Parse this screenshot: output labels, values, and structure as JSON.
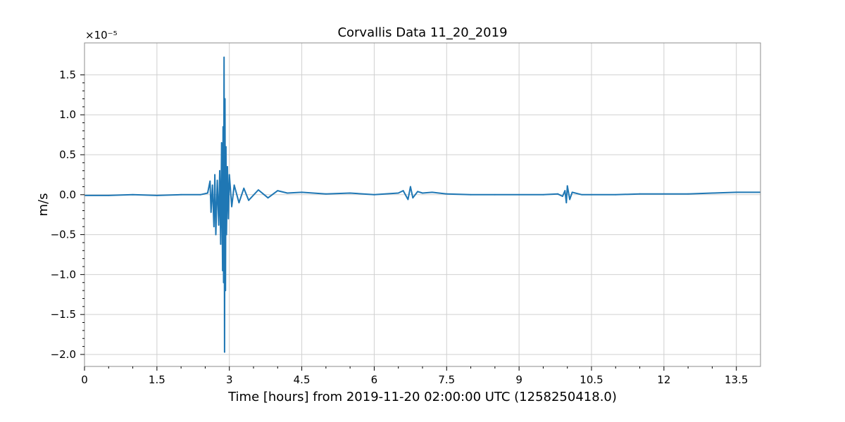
{
  "chart_data": {
    "type": "line",
    "title": "Corvallis Data 11_20_2019",
    "xlabel": "Time [hours] from 2019-11-20 02:00:00 UTC (1258250418.0)",
    "ylabel": "m/s",
    "y_offset_label": "×10⁻⁵",
    "xlim": [
      0,
      14
    ],
    "ylim": [
      -2.15,
      1.9
    ],
    "x_ticks": [
      0,
      1.5,
      3,
      4.5,
      6,
      7.5,
      9,
      10.5,
      12,
      13.5
    ],
    "x_tick_labels": [
      "0",
      "1.5",
      "3",
      "4.5",
      "6",
      "7.5",
      "9",
      "10.5",
      "12",
      "13.5"
    ],
    "y_ticks": [
      -2.0,
      -1.5,
      -1.0,
      -0.5,
      0.0,
      0.5,
      1.0,
      1.5
    ],
    "y_tick_labels": [
      "−2.0",
      "−1.5",
      "−1.0",
      "−0.5",
      "0.0",
      "0.5",
      "1.0",
      "1.5"
    ],
    "grid": true,
    "series": [
      {
        "color": "#1f77b4",
        "x": [
          0,
          0.5,
          1.0,
          1.5,
          2.0,
          2.4,
          2.55,
          2.6,
          2.62,
          2.65,
          2.68,
          2.7,
          2.72,
          2.75,
          2.78,
          2.8,
          2.82,
          2.84,
          2.86,
          2.87,
          2.88,
          2.89,
          2.9,
          2.91,
          2.92,
          2.93,
          2.94,
          2.96,
          2.98,
          3.0,
          3.05,
          3.1,
          3.2,
          3.3,
          3.4,
          3.6,
          3.8,
          4.0,
          4.2,
          4.5,
          5.0,
          5.5,
          6.0,
          6.5,
          6.6,
          6.7,
          6.75,
          6.8,
          6.9,
          7.0,
          7.2,
          7.5,
          8.0,
          8.5,
          9.0,
          9.5,
          9.8,
          9.9,
          9.95,
          9.98,
          10.0,
          10.05,
          10.1,
          10.3,
          10.5,
          11.0,
          11.5,
          12.0,
          12.5,
          13.0,
          13.5,
          14.0
        ],
        "y": [
          -0.01,
          -0.01,
          0.0,
          -0.01,
          0.0,
          0.0,
          0.02,
          0.17,
          -0.22,
          0.12,
          -0.4,
          0.25,
          -0.5,
          0.18,
          -0.38,
          0.3,
          -0.62,
          0.65,
          -0.95,
          0.85,
          -1.1,
          1.72,
          -1.97,
          1.2,
          -1.2,
          0.6,
          -0.5,
          0.35,
          -0.3,
          0.25,
          -0.15,
          0.12,
          -0.1,
          0.08,
          -0.07,
          0.06,
          -0.04,
          0.05,
          0.02,
          0.03,
          0.01,
          0.02,
          0.0,
          0.02,
          0.05,
          -0.06,
          0.1,
          -0.04,
          0.04,
          0.02,
          0.03,
          0.01,
          0.0,
          0.0,
          0.0,
          0.0,
          0.01,
          -0.02,
          0.05,
          -0.1,
          0.11,
          -0.06,
          0.03,
          0.0,
          0.0,
          0.0,
          0.01,
          0.01,
          0.01,
          0.02,
          0.03,
          0.03
        ]
      }
    ]
  }
}
